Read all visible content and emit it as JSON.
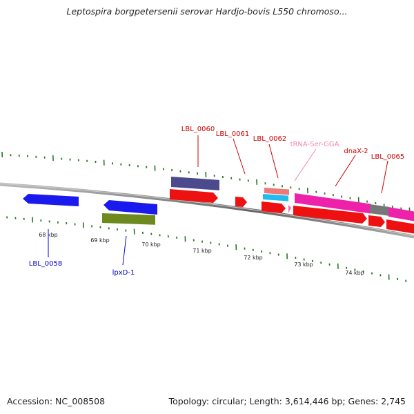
{
  "title": "Leptospira borgpetersenii serovar Hardjo-bovis L550 chromoso...",
  "footer": {
    "accession": "Accession: NC_008508",
    "summary": "Topology: circular; Length: 3,614,446 bp; Genes: 2,745"
  },
  "ticks": [
    "68 kbp",
    "69 kbp",
    "70 kbp",
    "71 kbp",
    "72 kbp",
    "73 kbp",
    "74 kbp"
  ],
  "features": [
    {
      "label": "LBL_0058",
      "color": "#0000cc",
      "strand": "reverse"
    },
    {
      "label": "lpxD-1",
      "color": "#0000cc",
      "strand": "reverse"
    },
    {
      "label": "LBL_0060",
      "color": "#cc0000",
      "strand": "forward"
    },
    {
      "label": "LBL_0061",
      "color": "#cc0000",
      "strand": "forward"
    },
    {
      "label": "LBL_0062",
      "color": "#cc0000",
      "strand": "forward"
    },
    {
      "label": "tRNA-Ser-GGA",
      "color": "#ee88aa",
      "strand": "forward"
    },
    {
      "label": "dnaX-2",
      "color": "#cc0000",
      "strand": "forward"
    },
    {
      "label": "LBL_0065",
      "color": "#cc0000",
      "strand": "forward"
    }
  ],
  "colors": {
    "gene_forward": "#ee1111",
    "gene_reverse": "#1a1aee",
    "cds_olive": "#6e8a1e",
    "cds_purple": "#4a4a8c",
    "trna": "#ff66aa",
    "rrna_cyan": "#22bbee",
    "misc_pink": "#ee22aa",
    "gap_gray": "#777777",
    "backbone": "#888888",
    "tick_major": "#227722"
  }
}
